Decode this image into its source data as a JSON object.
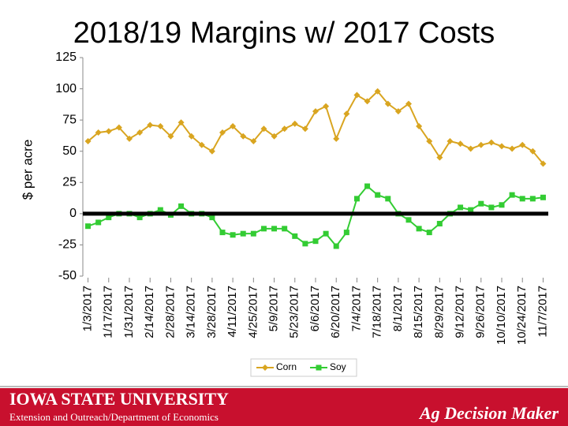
{
  "chart_data": {
    "type": "line",
    "title": "2018/19 Margins w/ 2017 Costs",
    "y_label": "$ per acre",
    "categories": [
      "1/3/2017",
      null,
      "1/17/2017",
      null,
      "1/31/2017",
      null,
      "2/14/2017",
      null,
      "2/28/2017",
      null,
      "3/14/2017",
      null,
      "3/28/2017",
      null,
      "4/11/2017",
      null,
      "4/25/2017",
      null,
      "5/9/2017",
      null,
      "5/23/2017",
      null,
      "6/6/2017",
      null,
      "6/20/2017",
      null,
      "7/4/2017",
      null,
      "7/18/2017",
      null,
      "8/1/2017",
      null,
      "8/15/2017",
      null,
      "8/29/2017",
      null,
      "9/12/2017",
      null,
      "9/26/2017",
      null,
      "10/10/2017",
      null,
      "10/24/2017",
      null,
      "11/7/2017"
    ],
    "series": [
      {
        "name": "Corn",
        "color": "#d9a520",
        "marker": "diamond",
        "values": [
          58,
          65,
          66,
          69,
          60,
          65,
          71,
          70,
          62,
          73,
          62,
          55,
          50,
          65,
          70,
          62,
          58,
          68,
          62,
          68,
          72,
          68,
          82,
          86,
          60,
          80,
          95,
          90,
          98,
          88,
          82,
          88,
          70,
          58,
          45,
          58,
          56,
          52,
          55,
          57,
          54,
          52,
          55,
          50,
          40
        ]
      },
      {
        "name": "Soy",
        "color": "#33cc33",
        "marker": "square",
        "values": [
          -10,
          -7,
          -3,
          0,
          0,
          -3,
          0,
          3,
          -1,
          6,
          0,
          0,
          -3,
          -15,
          -17,
          -16,
          -16,
          -12,
          -12,
          -12,
          -18,
          -24,
          -22,
          -16,
          -26,
          -15,
          12,
          22,
          15,
          12,
          0,
          -5,
          -12,
          -15,
          -8,
          0,
          5,
          3,
          8,
          5,
          7,
          15,
          12,
          12,
          13
        ]
      }
    ],
    "ylim": [
      -50,
      125
    ],
    "yticks": [
      -50,
      -25,
      0,
      25,
      50,
      75,
      100,
      125
    ],
    "legend": "bottom"
  },
  "footer": {
    "university": "IOWA STATE UNIVERSITY",
    "department": "Extension and Outreach/Department of Economics",
    "brand": "Ag Decision Maker"
  }
}
